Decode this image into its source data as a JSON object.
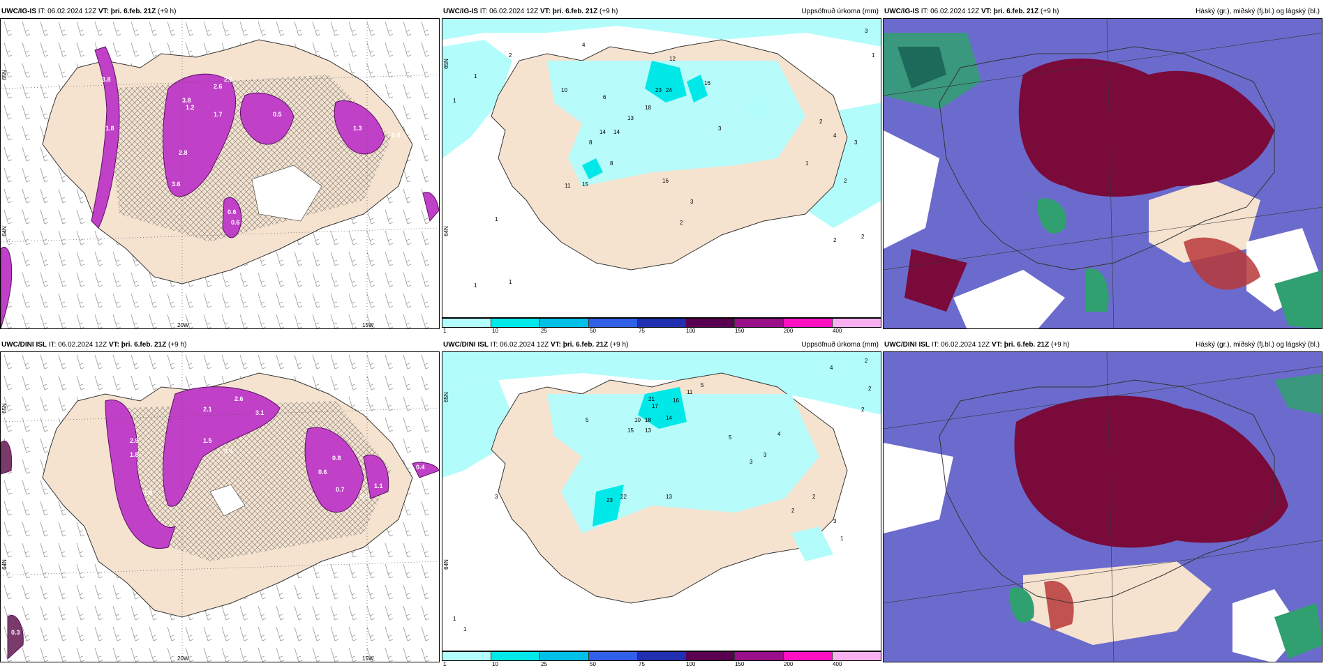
{
  "panels": {
    "p1": {
      "model": "UWC/IG-IS",
      "it_label": "IT:",
      "it_value": "06.02.2024 12Z",
      "vt_label": "VT:",
      "vt_value": "þri. 6.feb. 21Z",
      "lead": "(+9 h)",
      "right_title": "",
      "lon_labels": [
        "20W",
        "15W"
      ],
      "lat_labels": [
        "65N",
        "64N"
      ]
    },
    "p2": {
      "model": "UWC/IG-IS",
      "it_label": "IT:",
      "it_value": "06.02.2024 12Z",
      "vt_label": "VT:",
      "vt_value": "þri. 6.feb. 21Z",
      "lead": "(+9 h)",
      "right_title": "Uppsöfnuð úrkoma (mm)",
      "lat_labels": [
        "65N",
        "64N"
      ]
    },
    "p3": {
      "model": "UWC/IG-IS",
      "it_label": "IT:",
      "it_value": "06.02.2024 12Z",
      "vt_label": "VT:",
      "vt_value": "þri. 6.feb. 21Z",
      "lead": "(+9 h)",
      "right_title": "Háský (gr.), miðský (fj.bl.) og lágský (bl.)"
    },
    "p4": {
      "model": "UWC/DINI ISL",
      "it_label": "IT:",
      "it_value": "06.02.2024 12Z",
      "vt_label": "VT:",
      "vt_value": "þri. 6.feb. 21Z",
      "lead": "(+9 h)",
      "right_title": "",
      "lon_labels": [
        "20W",
        "15W"
      ],
      "lat_labels": [
        "65N",
        "64N"
      ]
    },
    "p5": {
      "model": "UWC/DINI ISL",
      "it_label": "IT:",
      "it_value": "06.02.2024 12Z",
      "vt_label": "VT:",
      "vt_value": "þri. 6.feb. 21Z",
      "lead": "(+9 h)",
      "right_title": "Uppsöfnuð úrkoma (mm)",
      "lat_labels": [
        "65N",
        "64N"
      ]
    },
    "p6": {
      "model": "UWC/DINI ISL",
      "it_label": "IT:",
      "it_value": "06.02.2024 12Z",
      "vt_label": "VT:",
      "vt_value": "þri. 6.feb. 21Z",
      "lead": "(+9 h)",
      "right_title": "Háský (gr.), miðský (fj.bl.) og lágský (bl.)"
    }
  },
  "precip_legend": {
    "ticks": [
      "1",
      "10",
      "25",
      "50",
      "75",
      "100",
      "150",
      "200",
      "400"
    ],
    "colors": [
      "#b3fcfc",
      "#00e8e8",
      "#00c0e8",
      "#3060e8",
      "#2030b0",
      "#5a0050",
      "#9a108a",
      "#ff10c0",
      "#f8b0f0"
    ]
  },
  "precip_labels_top": [
    "2",
    "4",
    "1",
    "1",
    "6",
    "10",
    "8",
    "13",
    "14",
    "18",
    "23",
    "24",
    "12",
    "14",
    "8",
    "15",
    "16",
    "16",
    "11",
    "3",
    "1",
    "2",
    "3",
    "1",
    "1",
    "1",
    "3",
    "2",
    "2",
    "4",
    "3",
    "1",
    "2",
    "2"
  ],
  "precip_labels_bottom": [
    "2",
    "5",
    "10",
    "13",
    "17",
    "15",
    "21",
    "18",
    "16",
    "14",
    "11",
    "23",
    "22",
    "13",
    "3",
    "5",
    "4",
    "2",
    "3",
    "1",
    "1",
    "1",
    "5",
    "2",
    "2",
    "3",
    "4",
    "3",
    "2"
  ],
  "wind_labels_top": [
    "3.8",
    "3.8",
    "1.8",
    "2.2",
    "1.7",
    "2.8",
    "2.6",
    "3.6",
    "1.2",
    "0.5",
    "0.6",
    "0.8",
    "1.3",
    "0.6"
  ],
  "wind_labels_bottom": [
    "2.6",
    "3.1",
    "2.1",
    "1.8",
    "2.9",
    "1.5",
    "2.4",
    "1.8",
    "0.8",
    "0.6",
    "0.7",
    "1.1",
    "0.5",
    "0.4",
    "0.3"
  ],
  "colors": {
    "land": "#f5e3d0",
    "cyan_light": "#b3fcfc",
    "magenta": "#c040c8",
    "cloud_dark": "#7a0a3a",
    "cloud_blue": "#5050c0",
    "cloud_green": "#30a070"
  }
}
